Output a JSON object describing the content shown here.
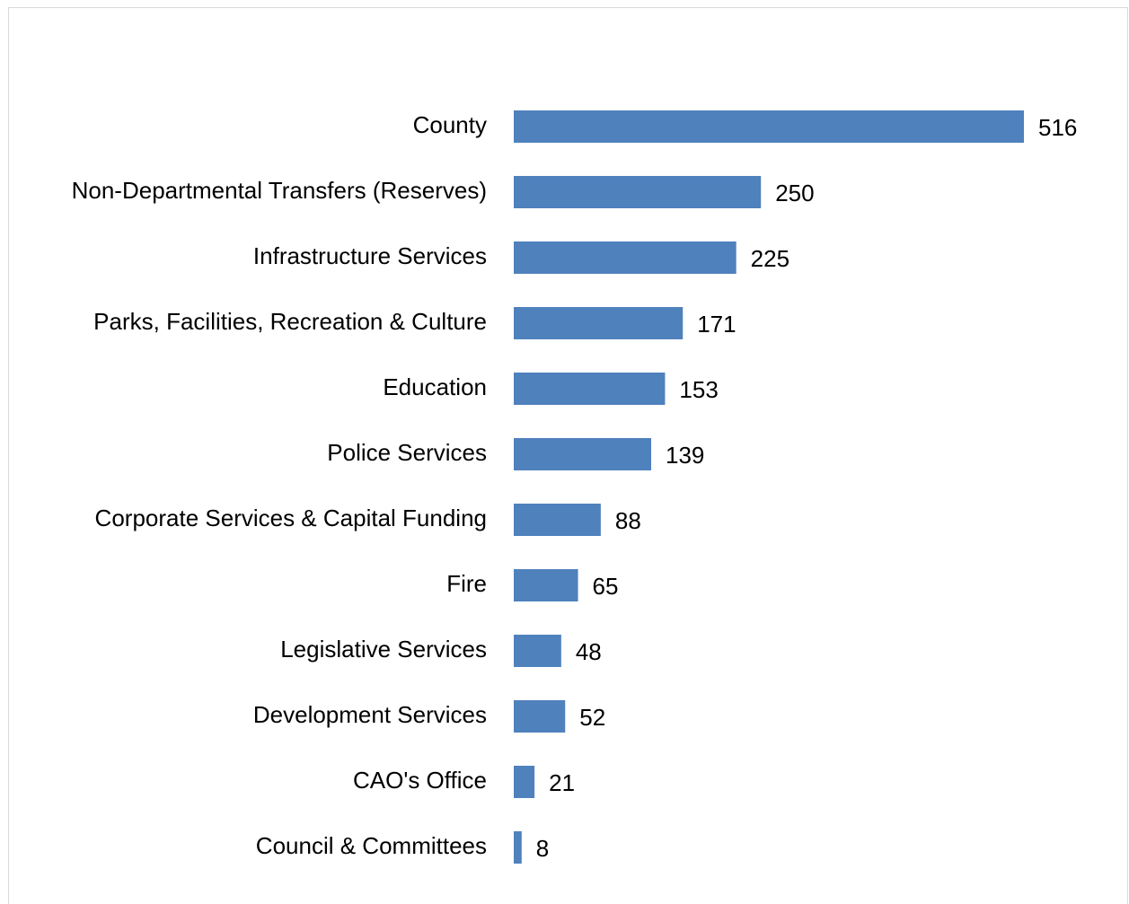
{
  "chart_data": {
    "type": "bar",
    "orientation": "horizontal",
    "categories": [
      "County",
      "Non-Departmental Transfers (Reserves)",
      "Infrastructure Services",
      "Parks, Facilities, Recreation & Culture",
      "Education",
      "Police Services",
      "Corporate Services & Capital Funding",
      "Fire",
      "Legislative Services",
      "Development Services",
      "CAO's Office",
      "Council & Committees"
    ],
    "values": [
      516,
      250,
      225,
      171,
      153,
      139,
      88,
      65,
      48,
      52,
      21,
      8
    ],
    "color": "#4f81bd"
  }
}
